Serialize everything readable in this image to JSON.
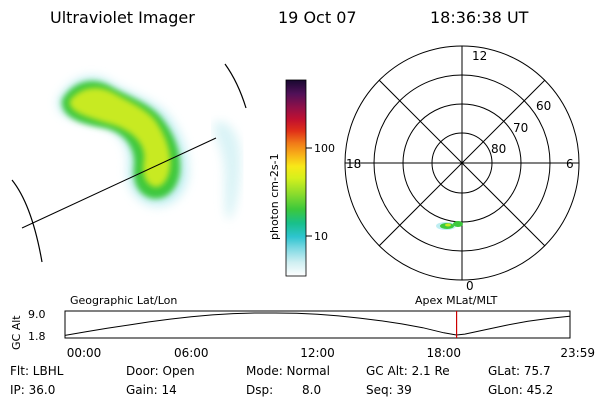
{
  "header": {
    "instrument": "Ultraviolet Imager",
    "date": "19 Oct 07",
    "time": "18:36:38 UT"
  },
  "colorbar": {
    "label": "photon cm-2s-1",
    "ticks": [
      "100",
      "10"
    ]
  },
  "polar_plot": {
    "mlt_labels": {
      "top": "12",
      "left": "18",
      "right": "6",
      "bottom": "0"
    },
    "lat_labels": [
      "60",
      "70",
      "80"
    ]
  },
  "map_panel": {
    "left_label": "Geographic Lat/Lon",
    "right_label": "Apex MLat/MLT"
  },
  "chart_data": {
    "type": "line",
    "ylabel": "GC Alt",
    "ytick_labels": [
      "9.0",
      "1.8"
    ],
    "ylim": [
      1.8,
      9.0
    ],
    "xtick_labels": [
      "00:00",
      "06:00",
      "12:00",
      "18:00",
      "23:59"
    ],
    "xlim_hours": [
      0,
      24
    ],
    "series": [
      {
        "x": [
          0,
          1,
          2,
          3,
          4,
          5,
          6,
          7,
          8,
          9,
          10,
          11,
          12,
          13,
          14,
          15,
          16,
          17,
          18,
          18.6,
          19,
          20,
          21,
          22,
          23,
          23.98
        ],
        "y": [
          2.0,
          3.1,
          4.2,
          5.2,
          6.2,
          7.1,
          7.8,
          8.4,
          8.8,
          9.0,
          9.0,
          8.9,
          8.6,
          8.1,
          7.4,
          6.6,
          5.6,
          4.4,
          2.8,
          2.1,
          2.4,
          3.8,
          5.2,
          6.4,
          7.3,
          8.0
        ]
      }
    ],
    "marker": {
      "x": 18.61,
      "color": "#cc0000"
    }
  },
  "info": {
    "filter": "Flt: LBHL",
    "door": "Door: Open",
    "mode": "Mode: Normal",
    "gc_alt": "GC Alt: 2.1 Re",
    "glat": "GLat: 75.7",
    "ip": "IP: 36.0",
    "gain": "Gain: 14",
    "dsp_label": "Dsp:",
    "dsp_value": "8.0",
    "seq": "Seq: 39",
    "glon": "GLon: 45.2"
  }
}
